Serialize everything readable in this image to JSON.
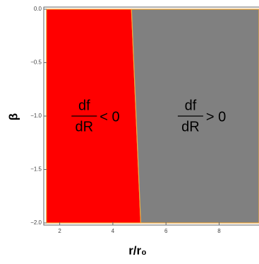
{
  "chart_data": {
    "type": "region",
    "x_label": "r/r₀",
    "y_label": "β",
    "xlim": [
      1.4,
      9.5
    ],
    "ylim": [
      -2.02,
      0.02
    ],
    "xticks": [
      2,
      4,
      6,
      8
    ],
    "yticks": [
      {
        "value": 0,
        "label": "0.0"
      },
      {
        "value": -0.5,
        "label": "−0.5"
      },
      {
        "value": -1,
        "label": "−1.0"
      },
      {
        "value": -1.5,
        "label": "−1.5"
      },
      {
        "value": -2,
        "label": "−2.0"
      }
    ],
    "regions": [
      {
        "color": "#ff0000",
        "x": [
          1.5,
          4.7,
          5.05,
          1.5
        ],
        "y": [
          0,
          0,
          -2,
          -2
        ],
        "numerator": "df",
        "denominator": "dR",
        "relation": "< 0"
      },
      {
        "color": "#808080",
        "x": [
          4.7,
          9.5,
          9.5,
          5.05
        ],
        "y": [
          0,
          0,
          -2,
          -2
        ],
        "numerator": "df",
        "denominator": "dR",
        "relation": "> 0"
      }
    ],
    "boundary_color": "#f2a93b"
  }
}
